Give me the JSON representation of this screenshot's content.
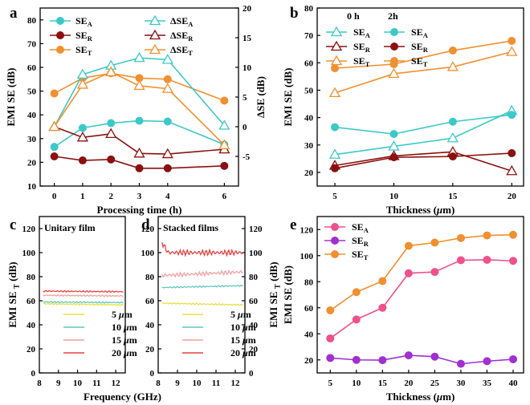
{
  "chart_data": [
    {
      "panel": "a",
      "type": "line",
      "xlabel": "Processing time (h)",
      "ylabel": "EMI SE (dB)",
      "y2label": "ΔSE (dB)",
      "xlim": [
        -0.5,
        6.5
      ],
      "ylim": [
        10,
        85
      ],
      "y2lim": [
        -10,
        20
      ],
      "x_ticks": [
        0,
        1,
        2,
        3,
        4,
        6
      ],
      "y_ticks": [
        10,
        20,
        30,
        40,
        50,
        60,
        70,
        80
      ],
      "y2_ticks": [
        -5,
        0,
        5,
        10,
        15,
        20
      ],
      "legend": "top",
      "series": [
        {
          "name": "SE",
          "sub": "A",
          "axis": "left",
          "marker": "circle-filled",
          "color": "#3cc8c8",
          "x": [
            0,
            1,
            2,
            3,
            4,
            6
          ],
          "values": [
            26.5,
            34.5,
            36.5,
            37.5,
            37.2,
            27.5
          ]
        },
        {
          "name": "SE",
          "sub": "R",
          "axis": "left",
          "marker": "circle-filled",
          "color": "#8b1010",
          "x": [
            0,
            1,
            2,
            3,
            4,
            6
          ],
          "values": [
            22.5,
            20.8,
            21.2,
            17.5,
            17.5,
            18.5
          ]
        },
        {
          "name": "SE",
          "sub": "T",
          "axis": "left",
          "marker": "circle-filled",
          "color": "#f09030",
          "x": [
            0,
            1,
            2,
            3,
            4,
            6
          ],
          "values": [
            49,
            55.5,
            57.5,
            55.5,
            55,
            46
          ]
        },
        {
          "name": "ΔSE",
          "sub": "A",
          "axis": "right",
          "marker": "triangle-open",
          "color": "#3cc8c8",
          "x": [
            0,
            1,
            2,
            3,
            4,
            6
          ],
          "values": [
            0,
            8.8,
            10.3,
            11.6,
            11.3,
            0.2
          ]
        },
        {
          "name": "ΔSE",
          "sub": "R",
          "axis": "right",
          "marker": "triangle-open",
          "color": "#8b1010",
          "x": [
            0,
            1,
            2,
            3,
            4,
            6
          ],
          "values": [
            0,
            -1.8,
            -1.2,
            -4.5,
            -4.6,
            -3.8
          ]
        },
        {
          "name": "ΔSE",
          "sub": "T",
          "axis": "right",
          "marker": "triangle-open",
          "color": "#f09030",
          "x": [
            0,
            1,
            2,
            3,
            4,
            6
          ],
          "values": [
            0,
            7.1,
            9.2,
            6.9,
            6.4,
            -3.1
          ]
        }
      ]
    },
    {
      "panel": "b",
      "type": "line",
      "xlabel": "Thickness (μm)",
      "ylabel": "EMI SE (dB)",
      "xlim": [
        3.5,
        21
      ],
      "ylim": [
        15,
        80
      ],
      "x_ticks": [
        5,
        10,
        15,
        20
      ],
      "y_ticks": [
        20,
        30,
        40,
        50,
        60,
        70,
        80
      ],
      "legend_headers": [
        "0 h",
        "2h"
      ],
      "legend_header_colors": [
        "#000000",
        "#e02020"
      ],
      "series": [
        {
          "name": "SE",
          "sub": "A",
          "group": "0 h",
          "marker": "triangle-open",
          "color": "#3cc8c8",
          "x": [
            5,
            10,
            15,
            20
          ],
          "values": [
            26.5,
            29.5,
            32.5,
            42.5
          ]
        },
        {
          "name": "SE",
          "sub": "R",
          "group": "0 h",
          "marker": "triangle-open",
          "color": "#8b1010",
          "x": [
            5,
            10,
            15,
            20
          ],
          "values": [
            22.5,
            26,
            27.5,
            20.5
          ]
        },
        {
          "name": "SE",
          "sub": "T",
          "group": "0 h",
          "marker": "triangle-open",
          "color": "#f09030",
          "x": [
            5,
            10,
            15,
            20
          ],
          "values": [
            49,
            56,
            58.5,
            64
          ]
        },
        {
          "name": "SE",
          "sub": "A",
          "group": "2h",
          "marker": "circle-filled",
          "color": "#3cc8c8",
          "x": [
            5,
            10,
            15,
            20
          ],
          "values": [
            36.5,
            34,
            38.5,
            41
          ]
        },
        {
          "name": "SE",
          "sub": "R",
          "group": "2h",
          "marker": "circle-filled",
          "color": "#8b1010",
          "x": [
            5,
            10,
            15,
            20
          ],
          "values": [
            21.5,
            25.5,
            25.8,
            27
          ]
        },
        {
          "name": "SE",
          "sub": "T",
          "group": "2h",
          "marker": "circle-filled",
          "color": "#f09030",
          "x": [
            5,
            10,
            15,
            20
          ],
          "values": [
            58,
            59.5,
            64.5,
            68
          ]
        }
      ]
    },
    {
      "panel": "c",
      "type": "line",
      "title": "Unitary film",
      "xlabel": "Frequency (GHz)",
      "ylabel": "EMI SE",
      "ylabel_sub": "T",
      "ylabel_unit": "(dB)",
      "xlim": [
        8,
        12.5
      ],
      "ylim": [
        0,
        130
      ],
      "x_ticks": [
        8,
        9,
        10,
        11,
        12
      ],
      "y_ticks": [
        0,
        20,
        40,
        60,
        80,
        100,
        120
      ],
      "legend": "bottom-center",
      "series": [
        {
          "name": "5 μm",
          "color": "#e8e040",
          "x": [
            8.2,
            12.4
          ],
          "values": [
            57.5,
            56.5
          ]
        },
        {
          "name": "10 μm",
          "color": "#5cc8c0",
          "x": [
            8.2,
            12.4
          ],
          "values": [
            59,
            58.5
          ]
        },
        {
          "name": "15 μm",
          "color": "#f0a0a0",
          "x": [
            8.2,
            12.4
          ],
          "values": [
            64.5,
            64
          ]
        },
        {
          "name": "20 μm",
          "color": "#e84040",
          "x": [
            8.2,
            12.4
          ],
          "values": [
            68,
            67.5
          ]
        }
      ]
    },
    {
      "panel": "d",
      "type": "line",
      "title": "Stacked films",
      "title_color": "#e02020",
      "xlabel": "",
      "ylabel": "EMI SE",
      "ylabel_sub": "T",
      "ylabel_unit": "(dB)",
      "xlim": [
        8,
        12.5
      ],
      "ylim": [
        0,
        130
      ],
      "x_ticks": [
        8,
        9,
        10,
        11,
        12
      ],
      "y_ticks": [
        0,
        20,
        40,
        60,
        80,
        100,
        120
      ],
      "legend": "bottom-center",
      "series": [
        {
          "name": "5 μm",
          "color": "#e8e040",
          "x": [
            8.2,
            12.4
          ],
          "values": [
            58,
            56.5
          ]
        },
        {
          "name": "10 μm",
          "color": "#5cc8c0",
          "x": [
            8.2,
            12.4
          ],
          "values": [
            71,
            72.5
          ]
        },
        {
          "name": "15 μm",
          "color": "#f0a0a0",
          "x": [
            8.2,
            12.4
          ],
          "values": [
            81,
            84
          ]
        },
        {
          "name": "20 μm",
          "color": "#e84040",
          "x": [
            8.2,
            12.4
          ],
          "values": [
            100,
            100
          ]
        }
      ]
    },
    {
      "panel": "e",
      "type": "line",
      "xlabel": "Thickness (μm)",
      "ylabel": "EMI SE (dB)",
      "xlim": [
        2.5,
        42
      ],
      "ylim": [
        10,
        130
      ],
      "x_ticks": [
        5,
        10,
        15,
        20,
        25,
        30,
        35,
        40
      ],
      "y_ticks": [
        20,
        40,
        60,
        80,
        100,
        120
      ],
      "legend": "top-left",
      "series": [
        {
          "name": "SE",
          "sub": "A",
          "marker": "circle-filled",
          "color": "#f0508c",
          "x": [
            5,
            10,
            15,
            20,
            25,
            30,
            35,
            40
          ],
          "values": [
            36.5,
            51,
            60,
            86.5,
            87.5,
            96.5,
            96.8,
            96
          ]
        },
        {
          "name": "SE",
          "sub": "R",
          "marker": "circle-filled",
          "color": "#a030d0",
          "x": [
            5,
            10,
            15,
            20,
            25,
            30,
            35,
            40
          ],
          "values": [
            21.5,
            20,
            19.8,
            23.5,
            22.5,
            17,
            19,
            20.5
          ]
        },
        {
          "name": "SE",
          "sub": "T",
          "marker": "circle-filled",
          "color": "#f09030",
          "x": [
            5,
            10,
            15,
            20,
            25,
            30,
            35,
            40
          ],
          "values": [
            58,
            72,
            80.5,
            107.5,
            110,
            113.5,
            115.5,
            116
          ]
        }
      ]
    }
  ]
}
